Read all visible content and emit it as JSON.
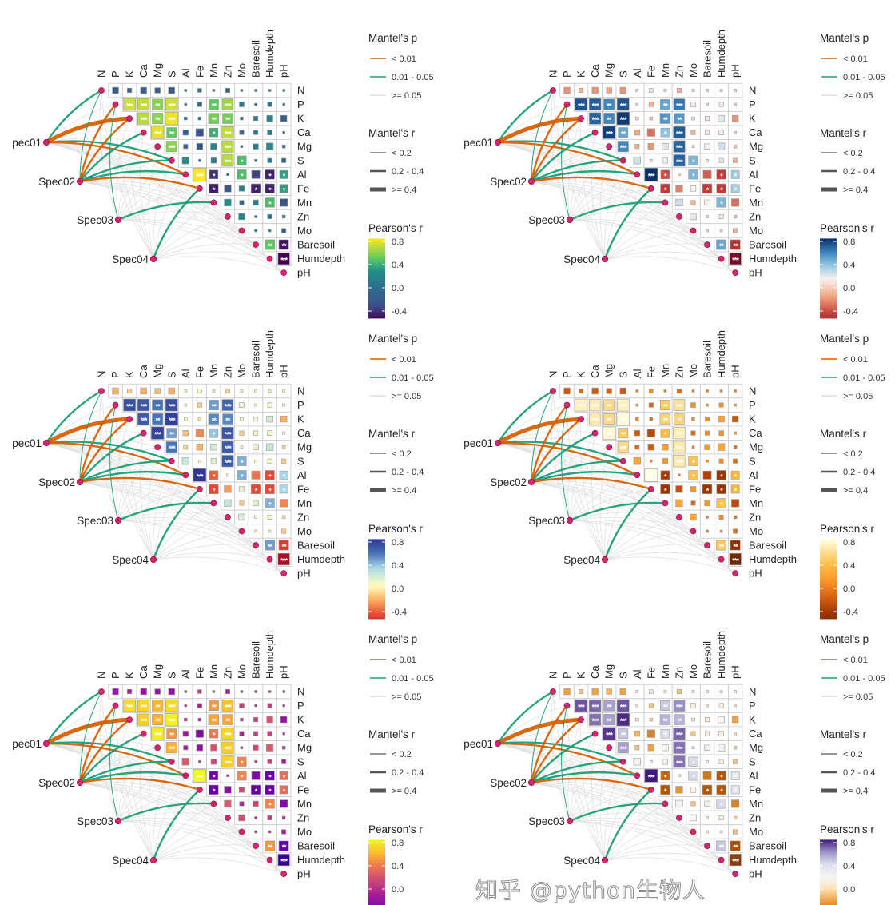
{
  "chart_data": {
    "type": "heatmap",
    "variables": [
      "N",
      "P",
      "K",
      "Ca",
      "Mg",
      "S",
      "Al",
      "Fe",
      "Mn",
      "Zn",
      "Mo",
      "Baresoil",
      "Humdepth",
      "pH"
    ],
    "species": [
      "pec01",
      "Spec02",
      "Spec03",
      "Spec04"
    ],
    "pearson_r_upper": [
      [
        -0.2,
        -0.1,
        -0.2,
        -0.15,
        -0.2,
        0.02,
        0.08,
        0.02,
        -0.1,
        0.01,
        0.02,
        0.03,
        0.03
      ],
      [
        0.75,
        0.72,
        0.6,
        0.75,
        0.03,
        -0.1,
        0.5,
        0.65,
        0.12,
        0.01,
        0.1,
        0.02
      ],
      [
        0.7,
        0.6,
        0.82,
        0.05,
        -0.05,
        0.55,
        0.55,
        0.05,
        0.1,
        0.2,
        -0.2
      ],
      [
        0.8,
        0.5,
        -0.15,
        -0.3,
        0.4,
        0.72,
        -0.1,
        0.1,
        0.12,
        0.03
      ],
      [
        0.6,
        -0.1,
        -0.2,
        0.2,
        0.7,
        0.02,
        0.15,
        0.25,
        -0.05
      ],
      [
        0.25,
        0.03,
        0.15,
        0.7,
        0.45,
        0.03,
        0.1,
        -0.1
      ],
      [
        0.85,
        -0.4,
        0.02,
        0.45,
        -0.35,
        -0.45,
        0.35
      ],
      [
        -0.45,
        -0.25,
        0.15,
        -0.45,
        -0.45,
        0.35
      ],
      [
        0.25,
        -0.1,
        0.15,
        0.45,
        -0.3
      ],
      [
        0.2,
        0.02,
        0.1,
        -0.05
      ],
      [
        0.02,
        0.03,
        -0.1
      ],
      [
        0.5,
        -0.5
      ],
      [
        -0.7
      ]
    ],
    "significance_upper": [
      [
        "",
        "",
        "",
        "",
        "",
        "",
        "",
        "",
        "",
        "",
        "",
        "",
        ""
      ],
      [
        "***",
        "***",
        "**",
        "***",
        "",
        "",
        "**",
        "***",
        "",
        "",
        "",
        ""
      ],
      [
        "***",
        "**",
        "***",
        "",
        "",
        "**",
        "**",
        "",
        "",
        "",
        ""
      ],
      [
        "***",
        "**",
        "",
        "",
        "*",
        "***",
        "",
        "",
        "",
        ""
      ],
      [
        "***",
        "",
        "",
        "",
        "***",
        "",
        "",
        "",
        ""
      ],
      [
        "",
        "",
        "",
        "***",
        "*",
        "",
        "",
        ""
      ],
      [
        "***",
        "*",
        "",
        "*",
        "",
        "*",
        "*"
      ],
      [
        "*",
        "",
        "",
        "*",
        "*",
        "*"
      ],
      [
        "",
        "",
        "",
        "*",
        ""
      ],
      [
        "",
        "",
        "",
        ""
      ],
      [
        "",
        "",
        ""
      ],
      [
        "**",
        "**"
      ],
      [
        "***"
      ]
    ],
    "mantel_links": [
      {
        "species": "pec01",
        "env": "N",
        "p": "0.01 - 0.05",
        "r": "0.2 - 0.4"
      },
      {
        "species": "pec01",
        "env": "K",
        "p": "< 0.01",
        "r": ">= 0.4"
      },
      {
        "species": "pec01",
        "env": "S",
        "p": "0.01 - 0.05",
        "r": "0.2 - 0.4"
      },
      {
        "species": "pec01",
        "env": "Al",
        "p": "< 0.01",
        "r": "0.2 - 0.4"
      },
      {
        "species": "Spec02",
        "env": "N",
        "p": "0.01 - 0.05",
        "r": "< 0.2"
      },
      {
        "species": "Spec02",
        "env": "P",
        "p": "< 0.01",
        "r": "0.2 - 0.4"
      },
      {
        "species": "Spec02",
        "env": "K",
        "p": "< 0.01",
        "r": "0.2 - 0.4"
      },
      {
        "species": "Spec02",
        "env": "Ca",
        "p": "0.01 - 0.05",
        "r": "0.2 - 0.4"
      },
      {
        "species": "Spec02",
        "env": "S",
        "p": "0.01 - 0.05",
        "r": "0.2 - 0.4"
      },
      {
        "species": "Spec02",
        "env": "Al",
        "p": "0.01 - 0.05",
        "r": "0.2 - 0.4"
      },
      {
        "species": "Spec02",
        "env": "Fe",
        "p": "< 0.01",
        "r": "0.2 - 0.4"
      },
      {
        "species": "Spec03",
        "env": "P",
        "p": "0.01 - 0.05",
        "r": "< 0.2"
      },
      {
        "species": "Spec03",
        "env": "Mn",
        "p": "0.01 - 0.05",
        "r": "0.2 - 0.4"
      },
      {
        "species": "Spec04",
        "env": "Fe",
        "p": "0.01 - 0.05",
        "r": "0.2 - 0.4"
      }
    ],
    "default_link": {
      "p": ">= 0.05",
      "r": "< 0.2"
    },
    "legend": {
      "mantel_p_title": "Mantel's p",
      "mantel_p_items": [
        {
          "label": "< 0.01",
          "color": "#D95F02"
        },
        {
          "label": "0.01 - 0.05",
          "color": "#1B9E77"
        },
        {
          "label": ">= 0.05",
          "color": "#DDDDDD"
        }
      ],
      "mantel_r_title": "Mantel's r",
      "mantel_r_items": [
        {
          "label": "< 0.2"
        },
        {
          "label": "0.2 - 0.4"
        },
        {
          "label": ">= 0.4"
        }
      ],
      "pearson_title": "Pearson's r",
      "pearson_ticks": [
        0.8,
        0.4,
        0.0,
        -0.4
      ],
      "pearson_tick_labels": [
        "0.8",
        "0.4",
        "0.0",
        "-0.4"
      ]
    },
    "panels": [
      {
        "palette": "viridis",
        "stops": [
          [
            -0.55,
            "#440154"
          ],
          [
            -0.3,
            "#3b528b"
          ],
          [
            0.05,
            "#2c728e"
          ],
          [
            0.3,
            "#21918c"
          ],
          [
            0.5,
            "#5ec962"
          ],
          [
            0.85,
            "#fde725"
          ]
        ]
      },
      {
        "palette": "RdBu",
        "stops": [
          [
            -0.75,
            "#67001f"
          ],
          [
            -0.45,
            "#c23b3b"
          ],
          [
            -0.15,
            "#f4a582"
          ],
          [
            0.15,
            "#f7f2f0"
          ],
          [
            0.4,
            "#92c5de"
          ],
          [
            0.6,
            "#3f87c0"
          ],
          [
            0.85,
            "#08306b"
          ]
        ]
      },
      {
        "palette": "RdYlBu",
        "stops": [
          [
            -0.75,
            "#a50026"
          ],
          [
            -0.45,
            "#e34a33"
          ],
          [
            -0.2,
            "#fdae61"
          ],
          [
            0.05,
            "#ffffbf"
          ],
          [
            0.35,
            "#abd9e9"
          ],
          [
            0.6,
            "#4575b4"
          ],
          [
            0.85,
            "#313695"
          ]
        ]
      },
      {
        "palette": "YlOrBr",
        "stops": [
          [
            -0.75,
            "#662506"
          ],
          [
            -0.45,
            "#993404"
          ],
          [
            -0.15,
            "#d95f0e"
          ],
          [
            0.15,
            "#fe9929"
          ],
          [
            0.45,
            "#fec44f"
          ],
          [
            0.85,
            "#ffffe5"
          ]
        ]
      },
      {
        "palette": "plasma",
        "stops": [
          [
            -0.75,
            "#2a0593"
          ],
          [
            -0.45,
            "#6a00a8"
          ],
          [
            -0.15,
            "#9c179e"
          ],
          [
            0.15,
            "#cc4778"
          ],
          [
            0.4,
            "#ed7953"
          ],
          [
            0.6,
            "#fdb42f"
          ],
          [
            0.85,
            "#f0f921"
          ]
        ]
      },
      {
        "palette": "PuOr",
        "stops": [
          [
            -0.75,
            "#7f3b08"
          ],
          [
            -0.45,
            "#b35806"
          ],
          [
            -0.2,
            "#f1a340"
          ],
          [
            0.0,
            "#fee0b6"
          ],
          [
            0.2,
            "#f7f7f7"
          ],
          [
            0.45,
            "#d8daeb"
          ],
          [
            0.65,
            "#998ec3"
          ],
          [
            0.85,
            "#3f1a78"
          ]
        ]
      }
    ]
  },
  "watermark": "知乎 @python生物人"
}
